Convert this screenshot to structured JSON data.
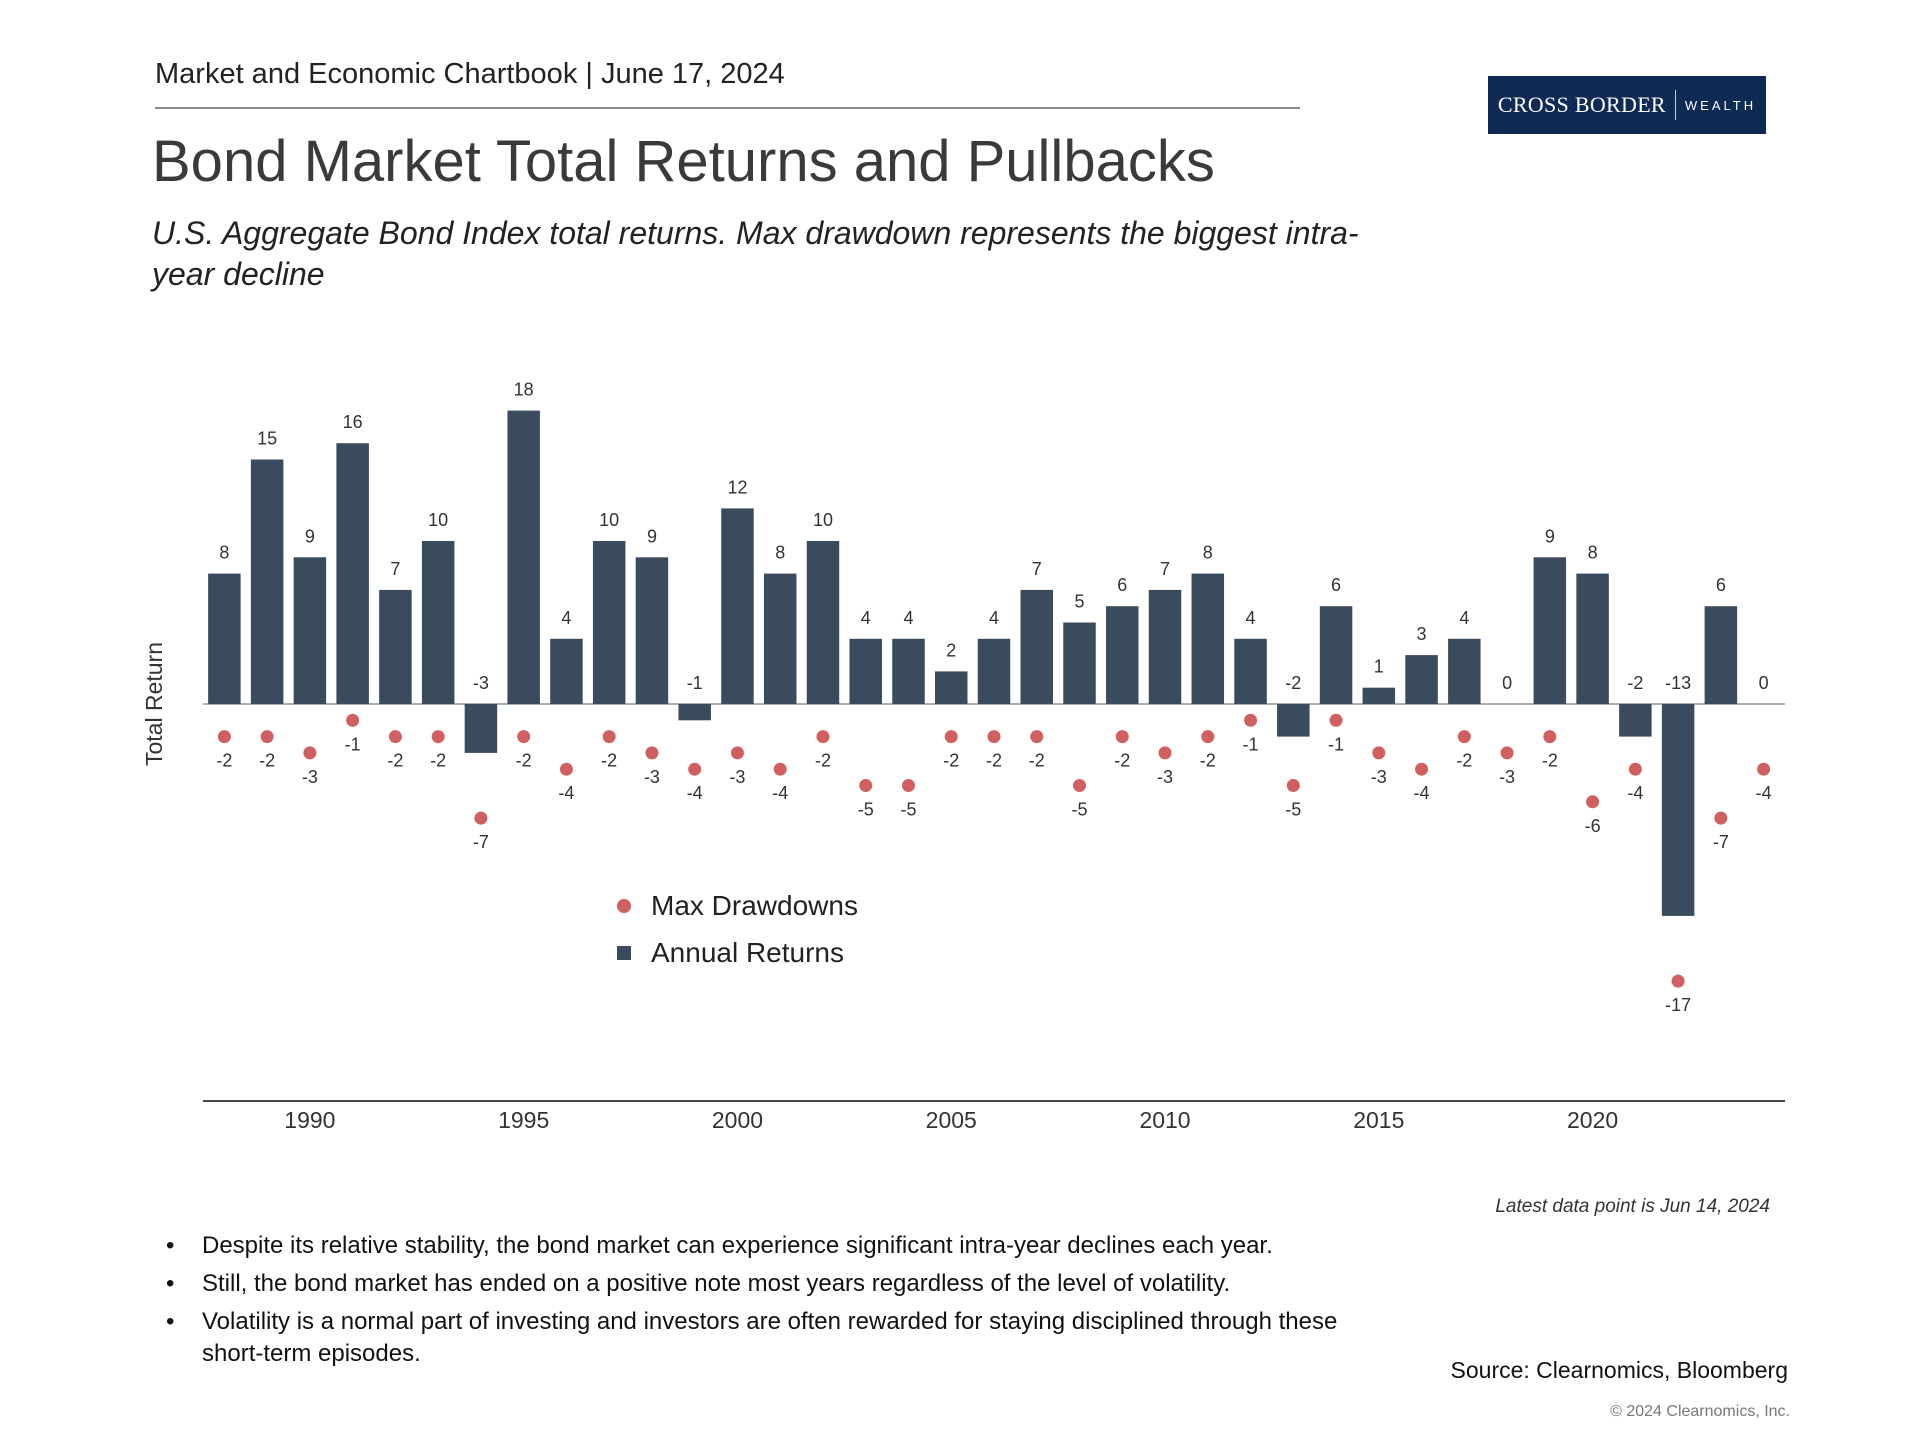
{
  "header": {
    "chartbook": "Market and Economic Chartbook",
    "separator": "|",
    "date": "June 17, 2024"
  },
  "logo": {
    "main": "CROSS BORDER",
    "sub": "WEALTH"
  },
  "colors": {
    "bar": "#3b4b5e",
    "dot": "#d06060",
    "logo_bg": "#0f2a55",
    "axis": "#4a4a4a"
  },
  "chart_data": {
    "type": "bar",
    "title": "Bond Market Total Returns and Pullbacks",
    "subtitle": "U.S. Aggregate Bond Index total returns. Max drawdown represents the biggest intra-year decline",
    "ylabel": "Total Return",
    "xlabel": "",
    "ylim": [
      -20,
      20
    ],
    "categories": [
      1988,
      1989,
      1990,
      1991,
      1992,
      1993,
      1994,
      1995,
      1996,
      1997,
      1998,
      1999,
      2000,
      2001,
      2002,
      2003,
      2004,
      2005,
      2006,
      2007,
      2008,
      2009,
      2010,
      2011,
      2012,
      2013,
      2014,
      2015,
      2016,
      2017,
      2018,
      2019,
      2020,
      2021,
      2022,
      2023,
      2024
    ],
    "x_ticks": [
      "1990",
      "1995",
      "2000",
      "2005",
      "2010",
      "2015",
      "2020"
    ],
    "series": [
      {
        "name": "Annual Returns",
        "type": "bar",
        "color": "#3b4b5e",
        "values": [
          8,
          15,
          9,
          16,
          7,
          10,
          -3,
          18,
          4,
          10,
          9,
          -1,
          12,
          8,
          10,
          4,
          4,
          2,
          4,
          7,
          5,
          6,
          7,
          8,
          4,
          -2,
          6,
          1,
          3,
          4,
          0,
          9,
          8,
          -2,
          -13,
          6,
          0
        ]
      },
      {
        "name": "Max Drawdowns",
        "type": "scatter",
        "color": "#d06060",
        "values": [
          -2,
          -2,
          -3,
          -1,
          -2,
          -2,
          -7,
          -2,
          -4,
          -2,
          -3,
          -4,
          -3,
          -4,
          -2,
          -5,
          -5,
          -2,
          -2,
          -2,
          -5,
          -2,
          -3,
          -2,
          -1,
          -5,
          -1,
          -3,
          -4,
          -2,
          -3,
          -2,
          -6,
          -4,
          -17,
          -7,
          -4
        ]
      }
    ],
    "legend": {
      "position": "bottom-center",
      "entries": [
        "Max Drawdowns",
        "Annual Returns"
      ]
    }
  },
  "note": "Latest data point is Jun 14, 2024",
  "bullets": [
    "Despite its relative stability, the bond market can experience significant intra-year declines each year.",
    "Still, the bond market has ended on a positive note most years regardless of the level of volatility.",
    "Volatility is a normal part of investing and investors are often rewarded for staying disciplined through these short-term episodes."
  ],
  "source": "Source: Clearnomics, Bloomberg",
  "copyright": "© 2024 Clearnomics, Inc."
}
